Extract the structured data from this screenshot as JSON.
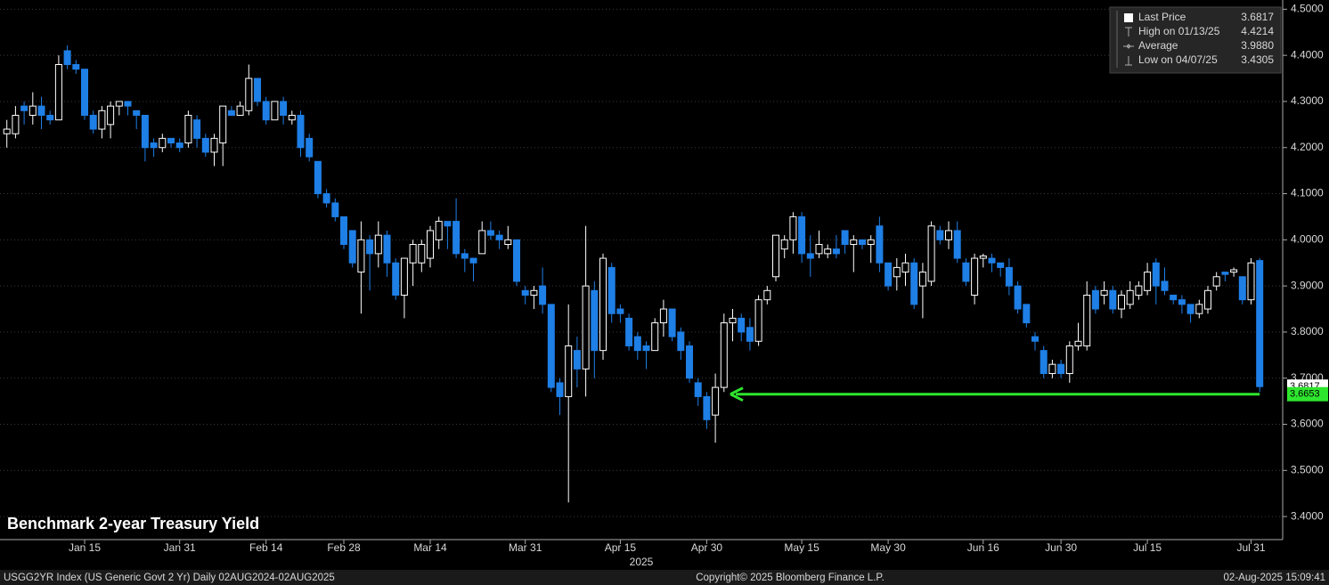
{
  "chart_data": {
    "type": "candlestick",
    "title": "Benchmark 2-year Treasury Yield",
    "x_year_label": "2025",
    "categories": [
      null,
      null,
      null,
      null,
      null,
      null,
      null,
      null,
      null,
      "Jan 15",
      null,
      null,
      null,
      null,
      null,
      null,
      null,
      null,
      null,
      null,
      "Jan 31",
      null,
      null,
      null,
      null,
      null,
      null,
      null,
      null,
      null,
      "Feb 14",
      null,
      null,
      null,
      null,
      null,
      null,
      null,
      null,
      "Feb 28",
      null,
      null,
      null,
      null,
      null,
      null,
      null,
      null,
      null,
      "Mar 14",
      null,
      null,
      null,
      null,
      null,
      null,
      null,
      null,
      null,
      null,
      "Mar 31",
      null,
      null,
      null,
      null,
      null,
      null,
      null,
      null,
      null,
      null,
      "Apr 15",
      null,
      null,
      null,
      null,
      null,
      null,
      null,
      null,
      null,
      "Apr 30",
      null,
      null,
      null,
      null,
      null,
      null,
      null,
      null,
      null,
      null,
      "May 15",
      null,
      null,
      null,
      null,
      null,
      null,
      null,
      null,
      null,
      "May 30",
      null,
      null,
      null,
      null,
      null,
      null,
      null,
      null,
      null,
      null,
      "Jun 16",
      null,
      null,
      null,
      null,
      null,
      null,
      null,
      null,
      "Jun 30",
      null,
      null,
      null,
      null,
      null,
      null,
      null,
      null,
      null,
      "Jul 15",
      null,
      null,
      null,
      null,
      null,
      null,
      null,
      null,
      null,
      null,
      null,
      "Jul 31",
      null
    ],
    "open": [
      4.23,
      4.23,
      4.29,
      4.27,
      4.29,
      4.27,
      4.26,
      4.41,
      4.38,
      4.37,
      4.27,
      4.24,
      4.25,
      4.29,
      4.3,
      4.28,
      4.27,
      4.21,
      4.2,
      4.22,
      4.21,
      4.21,
      4.26,
      4.22,
      4.19,
      4.21,
      4.28,
      4.27,
      4.28,
      4.35,
      4.3,
      4.26,
      4.3,
      4.26,
      4.27,
      4.22,
      4.17,
      4.1,
      4.08,
      4.05,
      4.02,
      3.93,
      4.0,
      3.97,
      4.01,
      3.95,
      3.88,
      3.95,
      3.95,
      3.96,
      4.0,
      4.04,
      4.04,
      3.97,
      3.96,
      3.97,
      4.02,
      4.01,
      3.99,
      4.0,
      3.89,
      3.88,
      3.9,
      3.86,
      3.69,
      3.66,
      3.76,
      3.72,
      3.89,
      3.76,
      3.94,
      3.85,
      3.83,
      3.79,
      3.77,
      3.76,
      3.82,
      3.85,
      3.8,
      3.77,
      3.69,
      3.66,
      3.62,
      3.68,
      3.82,
      3.83,
      3.81,
      3.78,
      3.87,
      3.92,
      3.98,
      4.0,
      4.05,
      3.97,
      3.97,
      3.97,
      3.98,
      4.02,
      3.99,
      4.0,
      3.99,
      4.03,
      3.95,
      3.92,
      3.93,
      3.95,
      3.9,
      3.91,
      4.02,
      4.0,
      4.02,
      3.95,
      3.88,
      3.96,
      3.96,
      3.95,
      3.94,
      3.9,
      3.86,
      3.79,
      3.76,
      3.71,
      3.73,
      3.71,
      3.77,
      3.77,
      3.89,
      3.88,
      3.89,
      3.85,
      3.86,
      3.88,
      3.89,
      3.95,
      3.91,
      3.88,
      3.87,
      3.86,
      3.84,
      3.85,
      3.9,
      3.93,
      3.93,
      3.92,
      3.87,
      3.955
    ],
    "high": [
      4.26,
      4.29,
      4.3,
      4.32,
      4.31,
      4.28,
      4.4,
      4.4214,
      4.39,
      4.37,
      4.28,
      4.29,
      4.3,
      4.3,
      4.3,
      4.28,
      4.27,
      4.22,
      4.23,
      4.22,
      4.22,
      4.28,
      4.27,
      4.23,
      4.23,
      4.29,
      4.29,
      4.3,
      4.38,
      4.35,
      4.31,
      4.3,
      4.31,
      4.28,
      4.28,
      4.23,
      4.17,
      4.11,
      4.09,
      4.05,
      4.02,
      4.04,
      4.01,
      4.04,
      4.02,
      3.96,
      3.96,
      4.0,
      4.0,
      4.03,
      4.05,
      4.04,
      4.09,
      3.98,
      3.96,
      4.04,
      4.04,
      4.02,
      4.03,
      4.0,
      3.9,
      3.9,
      3.94,
      3.86,
      3.7,
      3.86,
      3.79,
      4.03,
      3.91,
      3.97,
      3.95,
      3.86,
      3.84,
      3.8,
      3.78,
      3.83,
      3.87,
      3.85,
      3.81,
      3.78,
      3.7,
      3.67,
      3.71,
      3.84,
      3.85,
      3.84,
      3.83,
      3.88,
      3.9,
      4.01,
      4.01,
      4.06,
      4.06,
      4.01,
      4.02,
      3.99,
      4.01,
      4.02,
      4.01,
      4.0,
      4.01,
      4.05,
      3.95,
      3.96,
      3.97,
      3.96,
      3.95,
      4.04,
      4.03,
      4.04,
      4.04,
      3.96,
      3.97,
      3.97,
      3.97,
      3.95,
      3.96,
      3.91,
      3.86,
      3.8,
      3.77,
      3.74,
      3.74,
      3.78,
      3.82,
      3.91,
      3.9,
      3.91,
      3.9,
      3.89,
      3.91,
      3.91,
      3.95,
      3.96,
      3.94,
      3.88,
      3.88,
      3.86,
      3.87,
      3.9,
      3.93,
      3.93,
      3.94,
      3.92,
      3.96,
      3.96
    ],
    "low": [
      4.2,
      4.22,
      4.25,
      4.25,
      4.24,
      4.25,
      4.26,
      4.37,
      4.36,
      4.26,
      4.23,
      4.22,
      4.22,
      4.27,
      4.27,
      4.24,
      4.17,
      4.18,
      4.19,
      4.2,
      4.19,
      4.2,
      4.2,
      4.18,
      4.16,
      4.16,
      4.27,
      4.27,
      4.27,
      4.29,
      4.25,
      4.26,
      4.25,
      4.25,
      4.18,
      4.17,
      4.09,
      4.07,
      4.04,
      3.98,
      3.94,
      3.84,
      3.89,
      3.94,
      3.92,
      3.87,
      3.83,
      3.9,
      3.93,
      3.94,
      3.98,
      3.98,
      3.96,
      3.93,
      3.91,
      3.97,
      4.0,
      3.98,
      3.98,
      3.9,
      3.86,
      3.85,
      3.84,
      3.67,
      3.62,
      3.4305,
      3.68,
      3.66,
      3.7,
      3.74,
      3.82,
      3.82,
      3.76,
      3.74,
      3.72,
      3.76,
      3.79,
      3.78,
      3.74,
      3.69,
      3.64,
      3.59,
      3.56,
      3.67,
      3.78,
      3.78,
      3.76,
      3.77,
      3.86,
      3.91,
      3.96,
      3.97,
      3.95,
      3.92,
      3.96,
      3.96,
      3.96,
      3.97,
      3.93,
      3.98,
      3.95,
      3.93,
      3.89,
      3.89,
      3.9,
      3.85,
      3.83,
      3.9,
      3.99,
      3.98,
      3.95,
      3.9,
      3.86,
      3.94,
      3.93,
      3.92,
      3.88,
      3.84,
      3.81,
      3.76,
      3.7,
      3.7,
      3.7,
      3.69,
      3.76,
      3.76,
      3.84,
      3.86,
      3.84,
      3.83,
      3.85,
      3.87,
      3.88,
      3.86,
      3.88,
      3.86,
      3.84,
      3.82,
      3.83,
      3.84,
      3.89,
      3.91,
      3.92,
      3.86,
      3.86,
      3.67
    ],
    "close": [
      4.24,
      4.27,
      4.28,
      4.29,
      4.27,
      4.26,
      4.38,
      4.38,
      4.37,
      4.27,
      4.24,
      4.28,
      4.29,
      4.3,
      4.29,
      4.27,
      4.2,
      4.2,
      4.22,
      4.21,
      4.2,
      4.27,
      4.22,
      4.19,
      4.22,
      4.29,
      4.27,
      4.29,
      4.35,
      4.3,
      4.26,
      4.3,
      4.27,
      4.27,
      4.2,
      4.18,
      4.1,
      4.08,
      4.05,
      3.99,
      3.95,
      4.0,
      3.97,
      4.01,
      3.95,
      3.88,
      3.96,
      3.99,
      3.99,
      4.02,
      4.04,
      4.03,
      3.97,
      3.96,
      3.95,
      4.02,
      4.01,
      4.0,
      4.0,
      3.91,
      3.88,
      3.89,
      3.86,
      3.68,
      3.66,
      3.77,
      3.72,
      3.9,
      3.76,
      3.96,
      3.84,
      3.84,
      3.77,
      3.76,
      3.76,
      3.82,
      3.85,
      3.79,
      3.76,
      3.7,
      3.66,
      3.61,
      3.68,
      3.82,
      3.83,
      3.8,
      3.78,
      3.87,
      3.89,
      4.01,
      4.0,
      4.05,
      3.97,
      3.96,
      3.99,
      3.98,
      3.97,
      3.99,
      4.0,
      3.99,
      4.0,
      3.95,
      3.9,
      3.94,
      3.95,
      3.86,
      3.93,
      4.03,
      4.0,
      4.02,
      3.96,
      3.91,
      3.96,
      3.965,
      3.95,
      3.94,
      3.9,
      3.85,
      3.82,
      3.78,
      3.71,
      3.73,
      3.71,
      3.77,
      3.78,
      3.88,
      3.85,
      3.89,
      3.85,
      3.88,
      3.89,
      3.9,
      3.93,
      3.9,
      3.89,
      3.87,
      3.86,
      3.84,
      3.86,
      3.89,
      3.92,
      3.925,
      3.935,
      3.87,
      3.95,
      3.6817
    ],
    "up_color": "#ffffff",
    "down_color": "#1e7fe6",
    "ylim": [
      3.35,
      4.52
    ],
    "yticks": [
      {
        "value": 3.4,
        "label": "3.4000"
      },
      {
        "value": 3.5,
        "label": "3.5000"
      },
      {
        "value": 3.6,
        "label": "3.6000"
      },
      {
        "value": 3.7,
        "label": "3.7000"
      },
      {
        "value": 3.8,
        "label": "3.8000"
      },
      {
        "value": 3.9,
        "label": "3.9000"
      },
      {
        "value": 4.0,
        "label": "4.0000"
      },
      {
        "value": 4.1,
        "label": "4.1000"
      },
      {
        "value": 4.2,
        "label": "4.2000"
      },
      {
        "value": 4.3,
        "label": "4.3000"
      },
      {
        "value": 4.4,
        "label": "4.4000"
      },
      {
        "value": 4.5,
        "label": "4.5000"
      }
    ],
    "grid": true,
    "last_price": 3.6817,
    "annotation_level": 3.6653,
    "annotation_color": "#2ee62e",
    "legend": [
      {
        "label": "Last Price",
        "value": "3.6817"
      },
      {
        "label": "High on 01/13/25",
        "value": "4.4214"
      },
      {
        "label": "Average",
        "value": "3.9880"
      },
      {
        "label": "Low on 04/07/25",
        "value": "3.4305"
      }
    ]
  },
  "footer": {
    "left": "USGG2YR Index (US Generic Govt 2 Yr)  Daily 02AUG2024-02AUG2025",
    "center": "Copyright© 2025 Bloomberg Finance L.P.",
    "right": "02-Aug-2025 15:09:41"
  }
}
